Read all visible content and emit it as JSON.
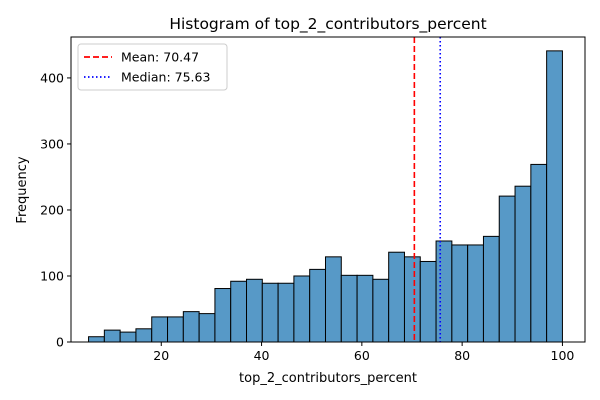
{
  "chart_data": {
    "type": "bar",
    "title": "Histogram of top_2_contributors_percent",
    "xlabel": "top_2_contributors_percent",
    "ylabel": "Frequency",
    "xlim": [
      2,
      104.5
    ],
    "ylim": [
      0,
      462
    ],
    "xticks": [
      20,
      40,
      60,
      80,
      100
    ],
    "yticks": [
      0,
      100,
      200,
      300,
      400
    ],
    "bar_color": "#5799c7",
    "bar_edge_color": "#000000",
    "bins": [
      {
        "start": 5.5,
        "end": 8.65,
        "count": 8
      },
      {
        "start": 8.65,
        "end": 11.8,
        "count": 18
      },
      {
        "start": 11.8,
        "end": 14.95,
        "count": 15
      },
      {
        "start": 14.95,
        "end": 18.1,
        "count": 20
      },
      {
        "start": 18.1,
        "end": 21.25,
        "count": 38
      },
      {
        "start": 21.25,
        "end": 24.4,
        "count": 38
      },
      {
        "start": 24.4,
        "end": 27.55,
        "count": 46
      },
      {
        "start": 27.55,
        "end": 30.7,
        "count": 43
      },
      {
        "start": 30.7,
        "end": 33.85,
        "count": 81
      },
      {
        "start": 33.85,
        "end": 37.0,
        "count": 92
      },
      {
        "start": 37.0,
        "end": 40.15,
        "count": 95
      },
      {
        "start": 40.15,
        "end": 43.3,
        "count": 89
      },
      {
        "start": 43.3,
        "end": 46.45,
        "count": 89
      },
      {
        "start": 46.45,
        "end": 49.6,
        "count": 100
      },
      {
        "start": 49.6,
        "end": 52.75,
        "count": 110
      },
      {
        "start": 52.75,
        "end": 55.9,
        "count": 129
      },
      {
        "start": 55.9,
        "end": 59.05,
        "count": 101
      },
      {
        "start": 59.05,
        "end": 62.2,
        "count": 101
      },
      {
        "start": 62.2,
        "end": 65.35,
        "count": 95
      },
      {
        "start": 65.35,
        "end": 68.5,
        "count": 136
      },
      {
        "start": 68.5,
        "end": 71.65,
        "count": 129
      },
      {
        "start": 71.65,
        "end": 74.8,
        "count": 122
      },
      {
        "start": 74.8,
        "end": 77.95,
        "count": 153
      },
      {
        "start": 77.95,
        "end": 81.1,
        "count": 147
      },
      {
        "start": 81.1,
        "end": 84.25,
        "count": 147
      },
      {
        "start": 84.25,
        "end": 87.4,
        "count": 160
      },
      {
        "start": 87.4,
        "end": 90.55,
        "count": 221
      },
      {
        "start": 90.55,
        "end": 93.7,
        "count": 236
      },
      {
        "start": 93.7,
        "end": 96.85,
        "count": 269
      },
      {
        "start": 96.85,
        "end": 100.0,
        "count": 441
      }
    ],
    "reference_lines": [
      {
        "label": "Mean: 70.47",
        "value": 70.47,
        "color": "#ff0000",
        "style": "dashed"
      },
      {
        "label": "Median: 75.63",
        "value": 75.63,
        "color": "#0000ff",
        "style": "dotted"
      }
    ],
    "legend_position": "top-left",
    "grid": false
  }
}
